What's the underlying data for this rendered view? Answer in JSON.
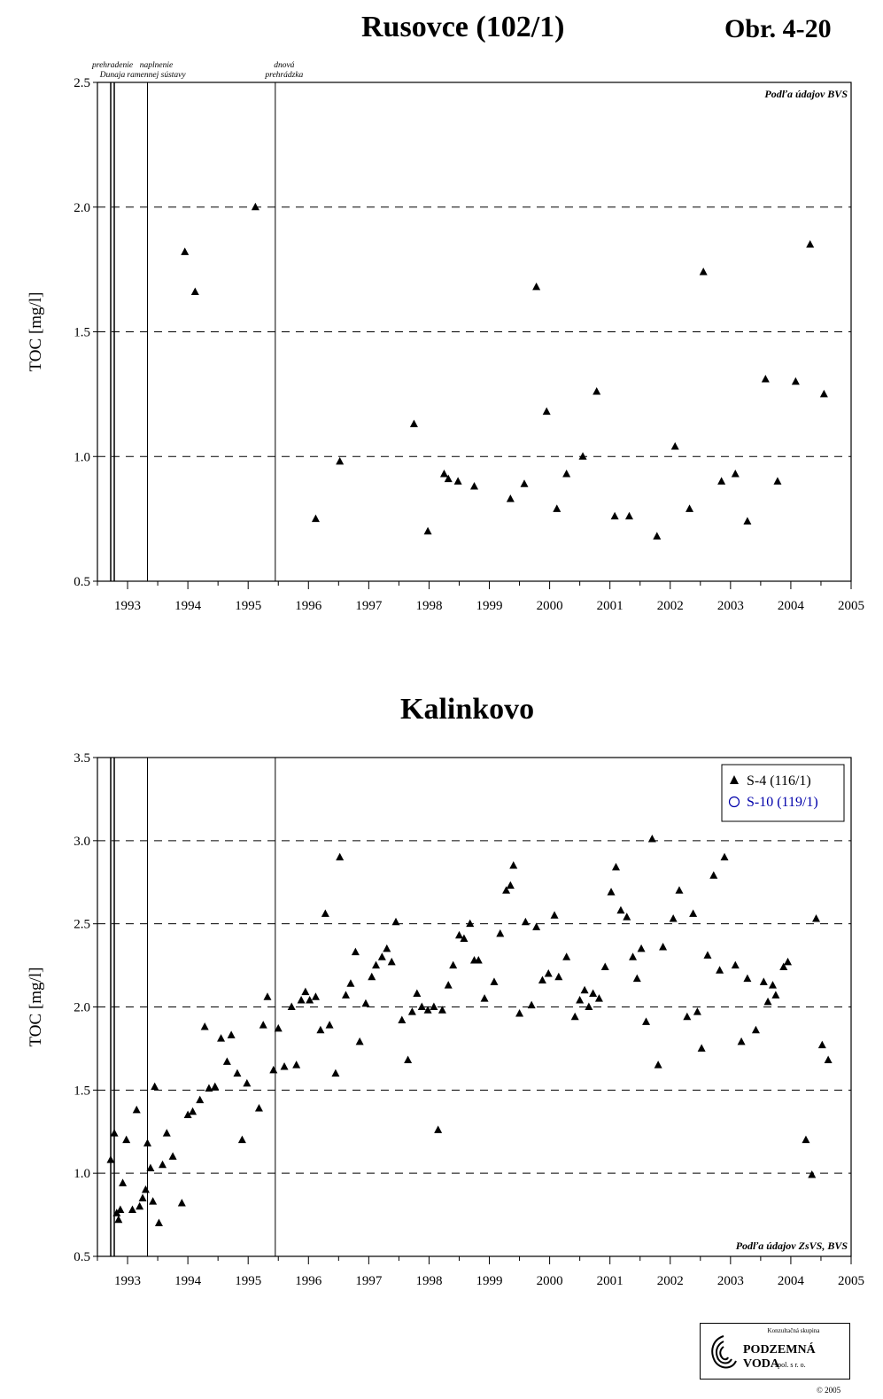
{
  "header": {
    "title": "Rusovce (102/1)",
    "figure_number": "Obr. 4-20"
  },
  "chart_data": [
    {
      "type": "scatter",
      "title": "Rusovce (102/1)",
      "ylabel": "TOC [mg/l]",
      "xlabel": "",
      "xlim": [
        1992.5,
        2005
      ],
      "ylim": [
        0.5,
        2.5
      ],
      "x_ticks": [
        "1993",
        "1994",
        "1995",
        "1996",
        "1997",
        "1998",
        "1999",
        "2000",
        "2001",
        "2002",
        "2003",
        "2004",
        "2005"
      ],
      "y_ticks": [
        "0.5",
        "1.0",
        "1.5",
        "2.0",
        "2.5"
      ],
      "grid": "horizontal dashed",
      "source_note": "Podľa údajov BVS",
      "events": [
        {
          "x": 1992.75,
          "label_lines": [
            "prehradenie",
            "Dunaja"
          ]
        },
        {
          "x": 1993.33,
          "label_lines": [
            "naplnenie",
            "ramennej sústavy"
          ]
        },
        {
          "x": 1995.45,
          "label_lines": [
            "dnová",
            "prehrádzka"
          ]
        }
      ],
      "series": [
        {
          "marker": "filled-triangle",
          "color": "#000000",
          "points": [
            [
              1993.95,
              1.82
            ],
            [
              1994.12,
              1.66
            ],
            [
              1995.12,
              2.0
            ],
            [
              1996.12,
              0.75
            ],
            [
              1996.52,
              0.98
            ],
            [
              1997.75,
              1.13
            ],
            [
              1997.98,
              0.7
            ],
            [
              1998.25,
              0.93
            ],
            [
              1998.32,
              0.91
            ],
            [
              1998.48,
              0.9
            ],
            [
              1998.75,
              0.88
            ],
            [
              1999.35,
              0.83
            ],
            [
              1999.58,
              0.89
            ],
            [
              1999.78,
              1.68
            ],
            [
              1999.95,
              1.18
            ],
            [
              2000.12,
              0.79
            ],
            [
              2000.28,
              0.93
            ],
            [
              2000.55,
              1.0
            ],
            [
              2000.78,
              1.26
            ],
            [
              2001.08,
              0.76
            ],
            [
              2001.32,
              0.76
            ],
            [
              2001.78,
              0.68
            ],
            [
              2002.08,
              1.04
            ],
            [
              2002.32,
              0.79
            ],
            [
              2002.55,
              1.74
            ],
            [
              2002.85,
              0.9
            ],
            [
              2003.08,
              0.93
            ],
            [
              2003.28,
              0.74
            ],
            [
              2003.58,
              1.31
            ],
            [
              2003.78,
              0.9
            ],
            [
              2004.08,
              1.3
            ],
            [
              2004.32,
              1.85
            ],
            [
              2004.55,
              1.25
            ]
          ]
        }
      ]
    },
    {
      "type": "scatter",
      "title": "Kalinkovo",
      "ylabel": "TOC [mg/l]",
      "xlabel": "",
      "xlim": [
        1992.5,
        2005
      ],
      "ylim": [
        0.5,
        3.5
      ],
      "x_ticks": [
        "1993",
        "1994",
        "1995",
        "1996",
        "1997",
        "1998",
        "1999",
        "2000",
        "2001",
        "2002",
        "2003",
        "2004",
        "2005"
      ],
      "y_ticks": [
        "0.5",
        "1.0",
        "1.5",
        "2.0",
        "2.5",
        "3.0",
        "3.5"
      ],
      "grid": "horizontal dashed",
      "source_note": "Podľa údajov ZsVS, BVS",
      "legend_position": "top-right",
      "events": [
        {
          "x": 1992.75,
          "label_lines": []
        },
        {
          "x": 1993.33,
          "label_lines": []
        },
        {
          "x": 1995.45,
          "label_lines": []
        }
      ],
      "series": [
        {
          "name": "S-4 (116/1)",
          "marker": "filled-triangle",
          "color": "#000000",
          "points": [
            [
              1992.72,
              1.08
            ],
            [
              1992.78,
              1.24
            ],
            [
              1992.82,
              0.76
            ],
            [
              1992.85,
              0.72
            ],
            [
              1992.88,
              0.78
            ],
            [
              1992.92,
              0.94
            ],
            [
              1992.98,
              1.2
            ],
            [
              1993.08,
              0.78
            ],
            [
              1993.15,
              1.38
            ],
            [
              1993.2,
              0.8
            ],
            [
              1993.25,
              0.85
            ],
            [
              1993.3,
              0.9
            ],
            [
              1993.33,
              1.18
            ],
            [
              1993.38,
              1.03
            ],
            [
              1993.42,
              0.83
            ],
            [
              1993.45,
              1.52
            ],
            [
              1993.52,
              0.7
            ],
            [
              1993.58,
              1.05
            ],
            [
              1993.65,
              1.24
            ],
            [
              1993.75,
              1.1
            ],
            [
              1993.9,
              0.82
            ],
            [
              1994.0,
              1.35
            ],
            [
              1994.08,
              1.37
            ],
            [
              1994.2,
              1.44
            ],
            [
              1994.28,
              1.88
            ],
            [
              1994.35,
              1.51
            ],
            [
              1994.45,
              1.52
            ],
            [
              1994.55,
              1.81
            ],
            [
              1994.65,
              1.67
            ],
            [
              1994.72,
              1.83
            ],
            [
              1994.82,
              1.6
            ],
            [
              1994.9,
              1.2
            ],
            [
              1994.98,
              1.54
            ],
            [
              1995.18,
              1.39
            ],
            [
              1995.25,
              1.89
            ],
            [
              1995.32,
              2.06
            ],
            [
              1995.42,
              1.62
            ],
            [
              1995.5,
              1.87
            ],
            [
              1995.6,
              1.64
            ],
            [
              1995.72,
              2.0
            ],
            [
              1995.8,
              1.65
            ],
            [
              1995.88,
              2.04
            ],
            [
              1995.95,
              2.09
            ],
            [
              1996.02,
              2.04
            ],
            [
              1996.12,
              2.06
            ],
            [
              1996.2,
              1.86
            ],
            [
              1996.28,
              2.56
            ],
            [
              1996.35,
              1.89
            ],
            [
              1996.45,
              1.6
            ],
            [
              1996.52,
              2.9
            ],
            [
              1996.62,
              2.07
            ],
            [
              1996.7,
              2.14
            ],
            [
              1996.78,
              2.33
            ],
            [
              1996.85,
              1.79
            ],
            [
              1996.95,
              2.02
            ],
            [
              1997.05,
              2.18
            ],
            [
              1997.12,
              2.25
            ],
            [
              1997.22,
              2.3
            ],
            [
              1997.3,
              2.35
            ],
            [
              1997.38,
              2.27
            ],
            [
              1997.45,
              2.51
            ],
            [
              1997.55,
              1.92
            ],
            [
              1997.65,
              1.68
            ],
            [
              1997.72,
              1.97
            ],
            [
              1997.8,
              2.08
            ],
            [
              1997.88,
              2.0
            ],
            [
              1997.98,
              1.98
            ],
            [
              1998.08,
              2.0
            ],
            [
              1998.15,
              1.26
            ],
            [
              1998.22,
              1.98
            ],
            [
              1998.32,
              2.13
            ],
            [
              1998.4,
              2.25
            ],
            [
              1998.5,
              2.43
            ],
            [
              1998.58,
              2.41
            ],
            [
              1998.68,
              2.5
            ],
            [
              1998.75,
              2.28
            ],
            [
              1998.82,
              2.28
            ],
            [
              1998.92,
              2.05
            ],
            [
              1999.08,
              2.15
            ],
            [
              1999.18,
              2.44
            ],
            [
              1999.28,
              2.7
            ],
            [
              1999.35,
              2.73
            ],
            [
              1999.4,
              2.85
            ],
            [
              1999.5,
              1.96
            ],
            [
              1999.6,
              2.51
            ],
            [
              1999.7,
              2.01
            ],
            [
              1999.78,
              2.48
            ],
            [
              1999.88,
              2.16
            ],
            [
              1999.98,
              2.2
            ],
            [
              2000.08,
              2.55
            ],
            [
              2000.15,
              2.18
            ],
            [
              2000.28,
              2.3
            ],
            [
              2000.42,
              1.94
            ],
            [
              2000.5,
              2.04
            ],
            [
              2000.58,
              2.1
            ],
            [
              2000.65,
              2.0
            ],
            [
              2000.72,
              2.08
            ],
            [
              2000.82,
              2.05
            ],
            [
              2000.92,
              2.24
            ],
            [
              2001.02,
              2.69
            ],
            [
              2001.1,
              2.84
            ],
            [
              2001.18,
              2.58
            ],
            [
              2001.28,
              2.54
            ],
            [
              2001.38,
              2.3
            ],
            [
              2001.45,
              2.17
            ],
            [
              2001.52,
              2.35
            ],
            [
              2001.6,
              1.91
            ],
            [
              2001.7,
              3.01
            ],
            [
              2001.8,
              1.65
            ],
            [
              2001.88,
              2.36
            ],
            [
              2002.05,
              2.53
            ],
            [
              2002.15,
              2.7
            ],
            [
              2002.28,
              1.94
            ],
            [
              2002.38,
              2.56
            ],
            [
              2002.45,
              1.97
            ],
            [
              2002.52,
              1.75
            ],
            [
              2002.62,
              2.31
            ],
            [
              2002.72,
              2.79
            ],
            [
              2002.82,
              2.22
            ],
            [
              2002.9,
              2.9
            ],
            [
              2003.08,
              2.25
            ],
            [
              2003.18,
              1.79
            ],
            [
              2003.28,
              2.17
            ],
            [
              2003.42,
              1.86
            ],
            [
              2003.55,
              2.15
            ],
            [
              2003.62,
              2.03
            ],
            [
              2003.7,
              2.13
            ],
            [
              2003.75,
              2.07
            ],
            [
              2003.88,
              2.24
            ],
            [
              2003.95,
              2.27
            ],
            [
              2004.25,
              1.2
            ],
            [
              2004.35,
              0.99
            ],
            [
              2004.42,
              2.53
            ],
            [
              2004.52,
              1.77
            ],
            [
              2004.62,
              1.68
            ]
          ]
        },
        {
          "name": "S-10 (119/1)",
          "marker": "open-circle",
          "color": "#0000aa",
          "points": []
        }
      ]
    }
  ],
  "logo": {
    "top": "Konzultačná skupina",
    "main": "PODZEMNÁ VODA",
    "sub": "spol. s r. o.",
    "copyright": "© 2005"
  }
}
